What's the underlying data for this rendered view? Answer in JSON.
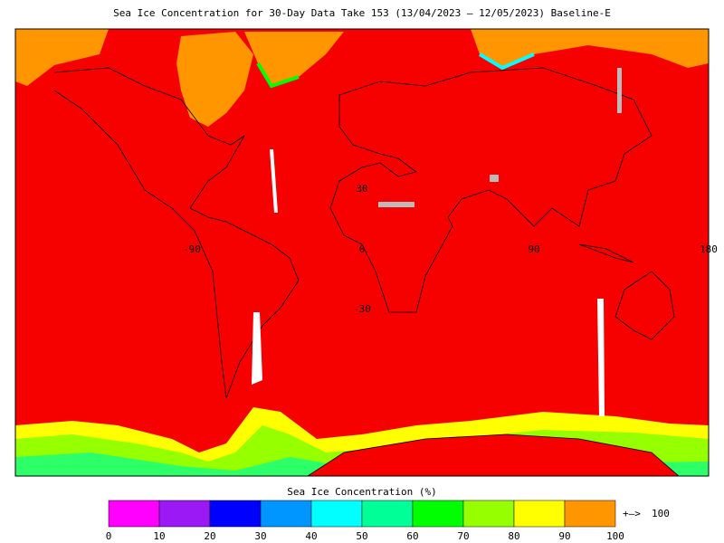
{
  "title": "Sea Ice Concentration for 30-Day Data Take 153 (13/04/2023 – 12/05/2023) Baseline-E",
  "map": {
    "lat_labels": [
      "30",
      "0",
      "-30"
    ],
    "lon_labels": [
      "-90",
      "0",
      "90",
      "180"
    ]
  },
  "colorbar": {
    "title": "Sea Ice Concentration (%)",
    "ticks": [
      0,
      10,
      20,
      30,
      40,
      50,
      60,
      70,
      80,
      90,
      100
    ],
    "colors": [
      "#ff00ff",
      "#9b19f5",
      "#0000ff",
      "#0096ff",
      "#00ffff",
      "#00ff96",
      "#00ff00",
      "#96ff00",
      "#ffff00",
      "#ff9600"
    ],
    "overflow_arrow": "+–>",
    "overflow_value": 100,
    "overflow_color": "#ff9600"
  }
}
